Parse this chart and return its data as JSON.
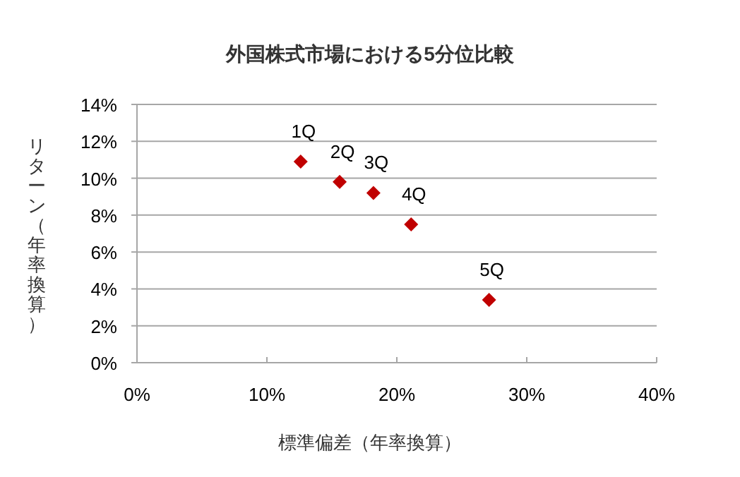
{
  "chart_data": {
    "type": "scatter",
    "title": "外国株式市場における5分位比較",
    "xlabel": "標準偏差（年率換算）",
    "ylabel": "リターン（年率換算）",
    "x": [
      12.6,
      15.6,
      18.2,
      21.1,
      27.1
    ],
    "series": [
      {
        "color": "#c00000",
        "values": [
          10.9,
          9.8,
          9.2,
          7.5,
          3.4
        ]
      }
    ],
    "annotations": [
      {
        "text": "1Q",
        "x": 12.6,
        "y": 10.9
      },
      {
        "text": "2Q",
        "x": 15.6,
        "y": 9.8
      },
      {
        "text": "3Q",
        "x": 18.2,
        "y": 9.2
      },
      {
        "text": "4Q",
        "x": 21.1,
        "y": 7.5
      },
      {
        "text": "5Q",
        "x": 27.1,
        "y": 3.4
      }
    ],
    "xlim": [
      0,
      40
    ],
    "xticks": [
      {
        "value": 0,
        "label": "0%"
      },
      {
        "value": 10,
        "label": "10%"
      },
      {
        "value": 20,
        "label": "20%"
      },
      {
        "value": 30,
        "label": "30%"
      },
      {
        "value": 40,
        "label": "40%"
      }
    ],
    "ylim": [
      0,
      14
    ],
    "yticks": [
      {
        "value": 0,
        "label": "0%"
      },
      {
        "value": 2,
        "label": "2%"
      },
      {
        "value": 4,
        "label": "4%"
      },
      {
        "value": 6,
        "label": "6%"
      },
      {
        "value": 8,
        "label": "8%"
      },
      {
        "value": 10,
        "label": "10%"
      },
      {
        "value": 12,
        "label": "12%"
      },
      {
        "value": 14,
        "label": "14%"
      }
    ],
    "grid": "y",
    "marker": "diamond"
  }
}
